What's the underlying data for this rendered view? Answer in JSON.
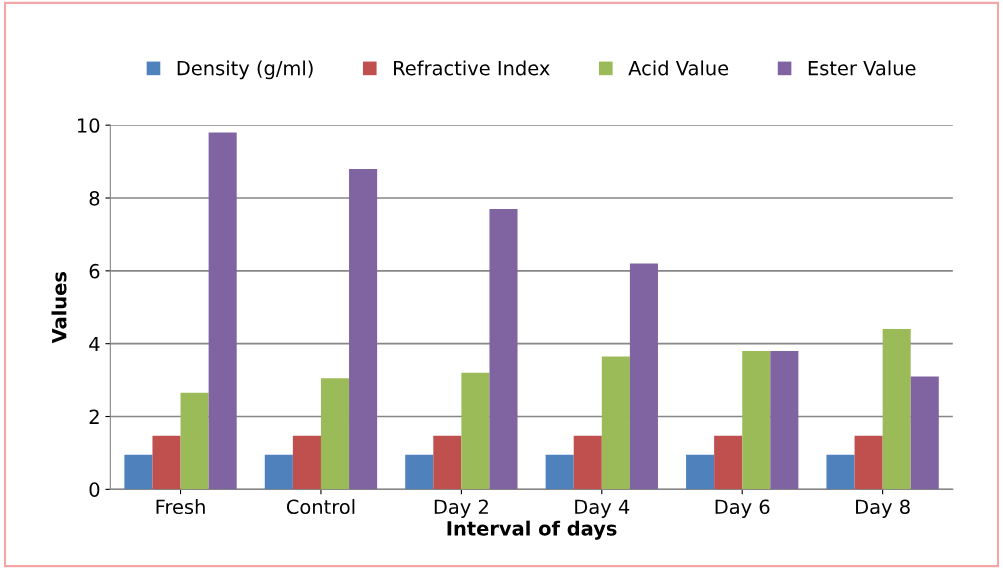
{
  "chart_data": {
    "type": "bar",
    "xlabel": "Interval of days",
    "ylabel": "Values",
    "categories": [
      "Fresh",
      "Control",
      "Day 2",
      "Day 4",
      "Day 6",
      "Day 8"
    ],
    "series": [
      {
        "name": "Density (g/ml)",
        "color": "#4f81bd",
        "values": [
          0.95,
          0.95,
          0.95,
          0.95,
          0.95,
          0.95
        ]
      },
      {
        "name": "Refractive Index",
        "color": "#c0504d",
        "values": [
          1.47,
          1.47,
          1.47,
          1.47,
          1.47,
          1.47
        ]
      },
      {
        "name": "Acid Value",
        "color": "#9bbb59",
        "values": [
          2.65,
          3.05,
          3.2,
          3.65,
          3.8,
          4.4
        ]
      },
      {
        "name": "Ester Value",
        "color": "#8064a2",
        "values": [
          9.8,
          8.8,
          7.7,
          6.2,
          3.8,
          3.1
        ]
      }
    ],
    "ylim": [
      0,
      10
    ],
    "yticks": [
      0,
      2,
      4,
      6,
      8,
      10
    ],
    "grid": "y",
    "legend": "top"
  }
}
